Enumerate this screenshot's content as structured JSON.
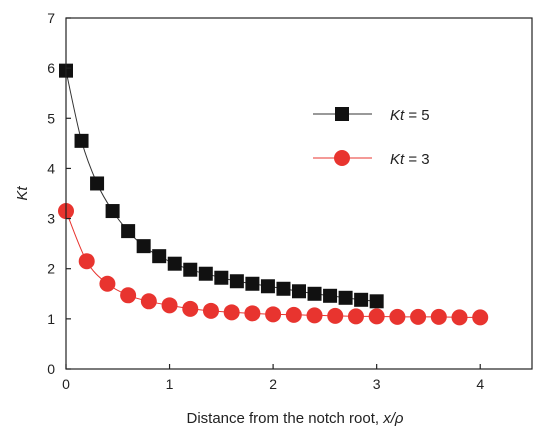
{
  "chart_data": {
    "type": "scatter",
    "title": "",
    "xlabel": {
      "prefix": "Distance from the notch root, ",
      "var": "x/ρ"
    },
    "ylabel": "Kt",
    "xlim": [
      0,
      4.5
    ],
    "ylim": [
      0,
      7
    ],
    "x_ticks": [
      0,
      1,
      2,
      3,
      4
    ],
    "y_ticks": [
      0,
      1,
      2,
      3,
      4,
      5,
      6,
      7
    ],
    "x_tick_labels": [
      "0",
      "1",
      "2",
      "3",
      "4"
    ],
    "y_tick_labels": [
      "0",
      "1",
      "2",
      "3",
      "4",
      "5",
      "6",
      "7"
    ],
    "grid": false,
    "legend_position": "top-right",
    "series": [
      {
        "name": "Kt = 5",
        "name_var": "Kt",
        "name_value": " = 5",
        "marker": "square",
        "color": "#111111",
        "line_color": "#333333",
        "x": [
          0,
          0.15,
          0.3,
          0.45,
          0.6,
          0.75,
          0.9,
          1.05,
          1.2,
          1.35,
          1.5,
          1.65,
          1.8,
          1.95,
          2.1,
          2.25,
          2.4,
          2.55,
          2.7,
          2.85,
          3.0
        ],
        "y": [
          5.95,
          4.55,
          3.7,
          3.15,
          2.75,
          2.45,
          2.25,
          2.1,
          1.98,
          1.9,
          1.82,
          1.75,
          1.7,
          1.65,
          1.6,
          1.55,
          1.5,
          1.46,
          1.42,
          1.38,
          1.35
        ]
      },
      {
        "name": "Kt = 3",
        "name_var": "Kt",
        "name_value": " = 3",
        "marker": "circle",
        "color": "#e8342f",
        "line_color": "#e8342f",
        "x": [
          0,
          0.2,
          0.4,
          0.6,
          0.8,
          1.0,
          1.2,
          1.4,
          1.6,
          1.8,
          2.0,
          2.2,
          2.4,
          2.6,
          2.8,
          3.0,
          3.2,
          3.4,
          3.6,
          3.8,
          4.0
        ],
        "y": [
          3.15,
          2.15,
          1.7,
          1.47,
          1.35,
          1.27,
          1.2,
          1.16,
          1.13,
          1.11,
          1.09,
          1.08,
          1.07,
          1.06,
          1.05,
          1.05,
          1.04,
          1.04,
          1.04,
          1.03,
          1.03
        ]
      }
    ]
  }
}
